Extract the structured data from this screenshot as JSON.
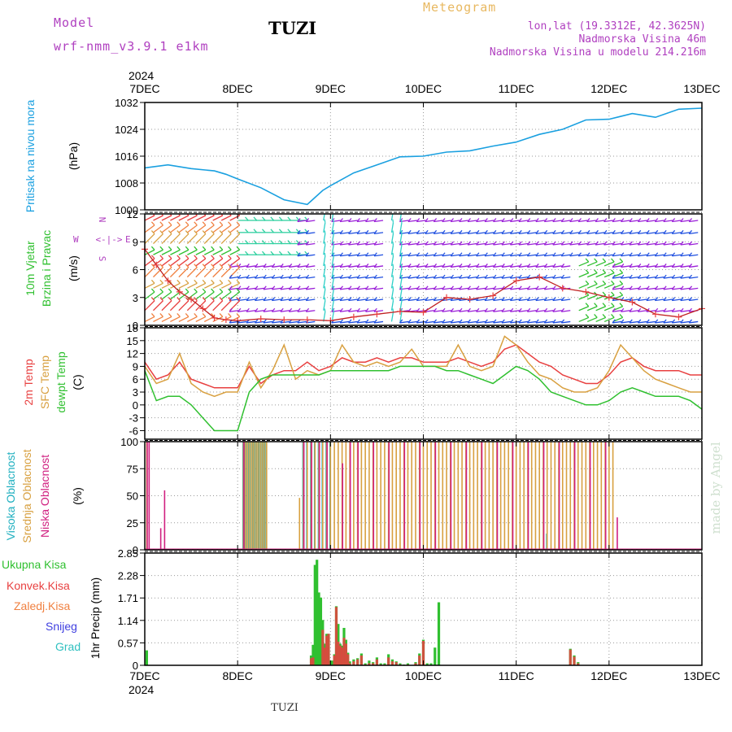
{
  "header": {
    "model_label": "Model",
    "model_name": "wrf-nmm_v3.9.1 e1km",
    "station": "TUZI",
    "meteogram_label": "Meteogram",
    "lonlat": "lon,lat (19.3312E, 42.3625N)",
    "elevation": "Nadmorska Visina 46m",
    "model_elevation": "Nadmorska Visina u modelu 214.216m",
    "footer_station": "TUZI",
    "watermark": "made by Angel"
  },
  "colors": {
    "pressure": "#1aa0e0",
    "temp2m": "#e84040",
    "sfc": "#d8a040",
    "dew": "#30c030",
    "high_cloud": "#20b0c0",
    "mid_cloud": "#d8a040",
    "low_cloud": "#d02080",
    "total_precip": "#30c030",
    "conv_precip": "#e84040",
    "snow": "#4040e0",
    "grad": "#30c0c0",
    "frz": "#f08040"
  },
  "chart_data": [
    {
      "type": "line",
      "title": "",
      "ylabel": "Pritisak na nivou mora",
      "unit": "(hPa)",
      "ylim": [
        1000,
        1032
      ],
      "yticks": [
        1000,
        1008,
        1016,
        1024,
        1032
      ],
      "x_start_label": [
        "2024",
        "7DEC"
      ],
      "x_days": [
        "7DEC",
        "8DEC",
        "9DEC",
        "10DEC",
        "11DEC",
        "12DEC",
        "13DEC"
      ],
      "x_hours": [
        0,
        6,
        12,
        18,
        21,
        24,
        30,
        36,
        42,
        46,
        48,
        54,
        60,
        66,
        72,
        78,
        84,
        90,
        96,
        102,
        108,
        114,
        120,
        126,
        132,
        138,
        144
      ],
      "values": [
        1012.5,
        1013.4,
        1012.3,
        1011.6,
        1010.6,
        1009.2,
        1006.6,
        1003.0,
        1001.6,
        1005.8,
        1007.2,
        1011.0,
        1013.4,
        1015.8,
        1016.0,
        1017.2,
        1017.6,
        1019.0,
        1020.2,
        1022.5,
        1024.0,
        1026.8,
        1027.0,
        1028.7,
        1027.6,
        1030.0,
        1030.3
      ]
    },
    {
      "type": "line",
      "title": "",
      "ylabel": [
        "10m Vjetar",
        "Brzina i Pravac"
      ],
      "unit": "(m/s)",
      "ylim": [
        0,
        12
      ],
      "yticks": [
        0,
        3,
        6,
        9,
        12
      ],
      "direction_legend": [
        "N",
        "<-|->",
        "E",
        "W",
        "S"
      ],
      "x_hours": [
        0,
        3,
        6,
        9,
        12,
        15,
        18,
        21,
        24,
        30,
        36,
        42,
        48,
        54,
        60,
        66,
        72,
        78,
        84,
        90,
        96,
        102,
        108,
        114,
        120,
        126,
        132,
        138,
        144
      ],
      "speed": [
        8.2,
        6.5,
        4.8,
        3.6,
        2.8,
        1.8,
        0.8,
        0.6,
        0.5,
        0.7,
        0.6,
        0.6,
        0.5,
        0.9,
        1.2,
        1.5,
        1.4,
        3.0,
        2.8,
        3.2,
        4.8,
        5.2,
        4.0,
        3.6,
        3.0,
        2.5,
        1.2,
        0.9,
        1.8
      ]
    },
    {
      "type": "line",
      "title": "",
      "ylabel": [
        "2m Temp",
        "SFC Temp",
        "dewpt Temp"
      ],
      "unit": "(C)",
      "ylim": [
        -8,
        18
      ],
      "yticks": [
        -6,
        -3,
        0,
        3,
        6,
        9,
        12,
        15,
        18
      ],
      "x_hours": [
        0,
        3,
        6,
        9,
        12,
        15,
        18,
        21,
        24,
        27,
        30,
        33,
        36,
        39,
        42,
        45,
        48,
        51,
        54,
        57,
        60,
        63,
        66,
        69,
        72,
        75,
        78,
        81,
        84,
        87,
        90,
        93,
        96,
        99,
        102,
        105,
        108,
        111,
        114,
        117,
        120,
        123,
        126,
        129,
        132,
        135,
        138,
        141,
        144
      ],
      "series": [
        {
          "name": "2m Temp",
          "values": [
            10,
            6,
            7,
            10,
            6,
            5,
            4,
            4,
            4,
            9,
            5,
            7,
            8,
            8,
            10,
            8,
            9,
            11,
            10,
            10,
            11,
            10,
            11,
            11,
            10,
            10,
            10,
            11,
            10,
            9,
            10,
            13,
            14,
            12,
            10,
            9,
            7,
            6,
            5,
            5,
            7,
            10,
            11,
            9,
            8,
            8,
            8,
            7,
            7
          ]
        },
        {
          "name": "SFC Temp",
          "values": [
            9,
            5,
            6,
            12,
            5,
            3,
            2,
            3,
            3,
            10,
            4,
            8,
            14,
            6,
            8,
            7,
            8,
            14,
            10,
            9,
            10,
            9,
            10,
            13,
            9,
            9,
            9,
            14,
            9,
            8,
            9,
            16,
            14,
            10,
            7,
            6,
            4,
            3,
            3,
            4,
            8,
            14,
            11,
            8,
            6,
            5,
            4,
            3,
            3
          ]
        },
        {
          "name": "dewpt Temp",
          "values": [
            8,
            1,
            2,
            2,
            0,
            -3,
            -6,
            -6,
            -6,
            3,
            6,
            7,
            7,
            7,
            7,
            7,
            8,
            8,
            8,
            8,
            8,
            8,
            9,
            9,
            9,
            9,
            8,
            8,
            7,
            6,
            5,
            7,
            9,
            8,
            6,
            3,
            2,
            1,
            0,
            0,
            1,
            3,
            4,
            3,
            2,
            2,
            2,
            1,
            -1
          ]
        }
      ]
    },
    {
      "type": "bar",
      "title": "",
      "ylabel": [
        "Visoka Oblacnost",
        "Srednja Oblacnost",
        "Niska Oblacnost"
      ],
      "unit": "(%)",
      "ylim": [
        0,
        100
      ],
      "yticks": [
        0,
        25,
        50,
        75,
        100
      ],
      "x_hours": [
        0.5,
        1,
        4,
        5,
        25.5,
        26,
        26.5,
        27,
        27.5,
        28,
        28.5,
        29,
        29.5,
        30,
        30.5,
        31,
        31.5,
        40,
        41,
        42,
        43,
        44,
        45,
        46,
        47,
        48,
        49,
        50,
        51,
        52,
        53,
        54,
        55,
        56,
        57,
        58,
        59,
        60,
        61,
        62,
        63,
        64,
        65,
        66,
        67,
        68,
        69,
        70,
        71,
        72,
        73,
        74,
        75,
        76,
        77,
        78,
        79,
        80,
        81,
        82,
        83,
        84,
        85,
        86,
        87,
        88,
        89,
        90,
        91,
        92,
        93,
        94,
        95,
        96,
        97,
        98,
        99,
        100,
        101,
        102,
        103,
        104,
        105,
        106,
        107,
        108,
        109,
        110,
        111,
        112,
        113,
        114,
        115,
        116,
        117,
        118,
        119,
        120,
        121,
        122,
        123,
        124,
        125,
        126,
        127,
        128,
        129,
        130,
        131,
        132,
        133,
        134,
        135,
        136,
        137,
        138,
        139,
        140,
        141,
        142,
        143
      ],
      "series": [
        {
          "name": "Visoka Oblacnost",
          "values": [
            0,
            0,
            0,
            0,
            100,
            100,
            100,
            100,
            100,
            100,
            100,
            100,
            100,
            100,
            100,
            100,
            100,
            0,
            100,
            100,
            100,
            100,
            100,
            100,
            100,
            100,
            0,
            0,
            0,
            0,
            0,
            0,
            0,
            0,
            0,
            0,
            0,
            0,
            0,
            0,
            0,
            0,
            0,
            0,
            0,
            0,
            0,
            0,
            0,
            0,
            0,
            0,
            0,
            0,
            0,
            0,
            0,
            0,
            0,
            0,
            0,
            0,
            0,
            0,
            0,
            0,
            0,
            0,
            0,
            0,
            0,
            0,
            0,
            0,
            0,
            0,
            0,
            0,
            0,
            0,
            0,
            15,
            0,
            0,
            0,
            0,
            0,
            0,
            0,
            0,
            0,
            0,
            0,
            0,
            0,
            0,
            0,
            0,
            0,
            0,
            0,
            0,
            0,
            0,
            0,
            0,
            0,
            0,
            0,
            0,
            0,
            0,
            0,
            0,
            0,
            0,
            0,
            0,
            0,
            0,
            0
          ]
        },
        {
          "name": "Srednja Oblacnost",
          "values": [
            100,
            0,
            0,
            0,
            100,
            100,
            100,
            100,
            100,
            100,
            100,
            100,
            100,
            100,
            100,
            100,
            100,
            48,
            100,
            100,
            100,
            100,
            100,
            100,
            100,
            100,
            100,
            100,
            100,
            100,
            100,
            100,
            100,
            100,
            100,
            100,
            100,
            100,
            100,
            100,
            100,
            100,
            100,
            100,
            100,
            100,
            100,
            100,
            100,
            100,
            100,
            100,
            100,
            100,
            100,
            100,
            100,
            100,
            100,
            100,
            100,
            100,
            100,
            100,
            100,
            100,
            100,
            100,
            100,
            100,
            100,
            100,
            100,
            100,
            100,
            100,
            100,
            100,
            100,
            100,
            100,
            100,
            100,
            100,
            100,
            100,
            100,
            100,
            100,
            100,
            100,
            100,
            100,
            100,
            100,
            100,
            100,
            100,
            100,
            0,
            0,
            0,
            0,
            0,
            0,
            0,
            0,
            0,
            0,
            0,
            0,
            0,
            0,
            0,
            0,
            0,
            0,
            0,
            0,
            0,
            0
          ]
        },
        {
          "name": "Niska Oblacnost",
          "values": [
            100,
            100,
            20,
            55,
            100,
            0,
            0,
            0,
            0,
            0,
            0,
            0,
            0,
            0,
            0,
            0,
            0,
            0,
            100,
            0,
            100,
            0,
            100,
            0,
            100,
            0,
            0,
            0,
            80,
            0,
            100,
            0,
            100,
            0,
            0,
            0,
            100,
            0,
            0,
            0,
            100,
            0,
            0,
            0,
            100,
            0,
            0,
            0,
            100,
            0,
            0,
            0,
            100,
            0,
            0,
            0,
            100,
            0,
            0,
            0,
            100,
            0,
            0,
            0,
            100,
            0,
            0,
            0,
            100,
            0,
            0,
            0,
            100,
            0,
            0,
            0,
            100,
            0,
            0,
            0,
            100,
            0,
            0,
            0,
            100,
            0,
            0,
            0,
            100,
            0,
            0,
            0,
            100,
            0,
            0,
            0,
            100,
            0,
            0,
            30,
            0,
            0,
            0,
            0,
            0,
            0,
            0,
            0,
            0,
            0,
            0,
            0,
            0,
            0,
            0,
            0,
            0,
            0,
            0,
            0,
            0
          ]
        }
      ]
    },
    {
      "type": "bar",
      "title": "",
      "ylabel": "1hr Precip",
      "unit": "(mm)",
      "ylim": [
        0,
        2.85
      ],
      "yticks": [
        0,
        0.57,
        1.14,
        1.71,
        2.28,
        2.85
      ],
      "x_days": [
        "7DEC",
        "8DEC",
        "9DEC",
        "10DEC",
        "11DEC",
        "12DEC",
        "13DEC"
      ],
      "x_end_label": "2024",
      "legend": [
        "Ukupna Kisa",
        "Konvek.Kisa",
        "Zaledj.Kisa",
        "Snijeg",
        "Grad"
      ],
      "x_hours": [
        0.5,
        43,
        43.5,
        44,
        44.5,
        45,
        45.5,
        46,
        46.5,
        47,
        47.5,
        48,
        48.5,
        49,
        49.5,
        50,
        50.5,
        51,
        51.5,
        52,
        52.5,
        53,
        54,
        55,
        56,
        57,
        58,
        59,
        60,
        61,
        62,
        63,
        64,
        65,
        66,
        67,
        68,
        69,
        70,
        71,
        72,
        73,
        74,
        75,
        76,
        77,
        78,
        79,
        80,
        81,
        82,
        83,
        84,
        85,
        86,
        87,
        88,
        89,
        90,
        91,
        92,
        93,
        94,
        95,
        96,
        97,
        98,
        99,
        100,
        101,
        102,
        103,
        104,
        105,
        106,
        107,
        108,
        109,
        110,
        111,
        112,
        113,
        114
      ],
      "series": [
        {
          "name": "Ukupna Kisa",
          "values": [
            0.38,
            0.25,
            0.52,
            2.55,
            2.68,
            1.85,
            1.72,
            1.15,
            0.55,
            0.8,
            0.8,
            0.12,
            0.12,
            0.28,
            1.5,
            1.05,
            0.55,
            0.5,
            0.95,
            0.65,
            0.32,
            0.1,
            0.15,
            0.18,
            0.3,
            0.05,
            0.12,
            0.08,
            0.2,
            0.05,
            0.05,
            0.28,
            0.15,
            0.1,
            0.05,
            0.02,
            0.05,
            0,
            0.08,
            0.3,
            0.65,
            0.05,
            0.05,
            0.45,
            1.6,
            0,
            0,
            0,
            0,
            0,
            0,
            0,
            0,
            0,
            0,
            0,
            0,
            0,
            0,
            0,
            0,
            0,
            0,
            0,
            0,
            0,
            0,
            0,
            0,
            0,
            0,
            0,
            0,
            0,
            0,
            0,
            0,
            0,
            0.42,
            0.25,
            0.08,
            0,
            0
          ]
        },
        {
          "name": "Konvek.Kisa",
          "values": [
            0,
            0.18,
            0.2,
            0,
            0,
            0,
            0,
            0.9,
            0.45,
            0.75,
            0.8,
            0,
            0,
            0.25,
            1.48,
            0.6,
            0.5,
            0.45,
            0.7,
            0.55,
            0.28,
            0.05,
            0.1,
            0.15,
            0.25,
            0.02,
            0.05,
            0.05,
            0.15,
            0.02,
            0.02,
            0.2,
            0.1,
            0.08,
            0.02,
            0,
            0.02,
            0,
            0.05,
            0.25,
            0.62,
            0,
            0,
            0,
            0,
            0,
            0,
            0,
            0,
            0,
            0,
            0,
            0,
            0,
            0,
            0,
            0,
            0,
            0,
            0,
            0,
            0,
            0,
            0,
            0,
            0,
            0,
            0,
            0,
            0,
            0,
            0,
            0,
            0,
            0,
            0,
            0,
            0,
            0.4,
            0.22,
            0.05,
            0,
            0
          ]
        }
      ]
    }
  ]
}
